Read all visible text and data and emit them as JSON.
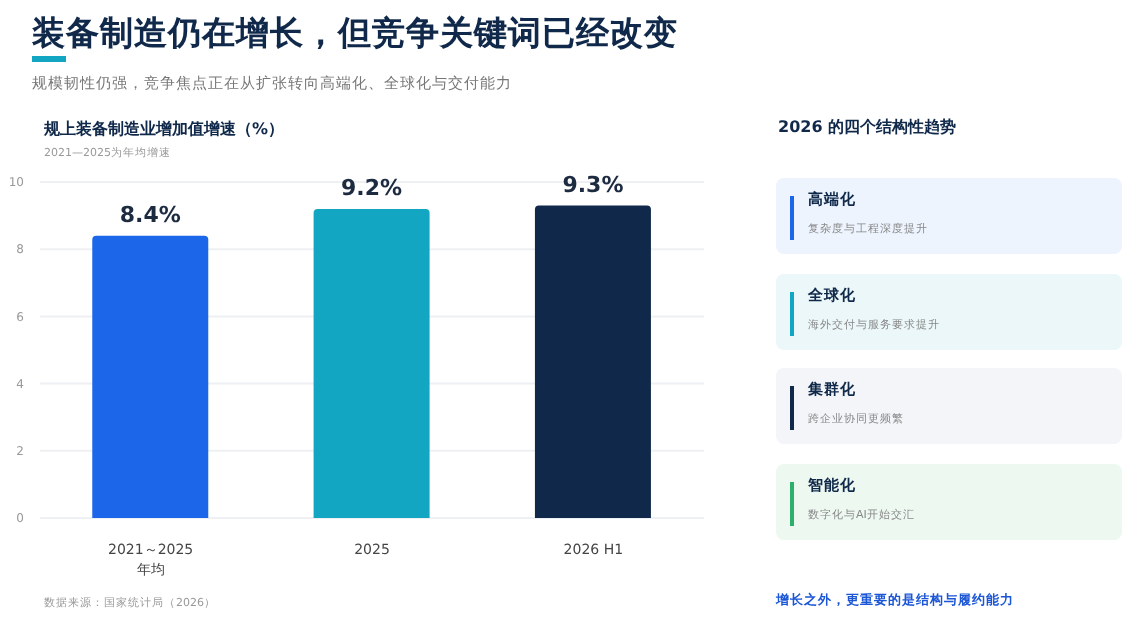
{
  "chart_data": {
    "type": "bar",
    "title": "装备制造仍在增长，但竞争关键词已经改变",
    "subtitle": "规模韧性仍强，竞争焦点正在从扩张转向高端化、全球化与交付能力",
    "annotations": [
      "规上装备制造业增加值增速（%）",
      "2021—2025为年均增速",
      "数据来源：国家统计局（2026）",
      "2026 的四个结构性趋势",
      "高端化",
      "复杂度与工程深度提升",
      "全球化",
      "海外交付与服务要求提升",
      "集群化",
      "跨企业协同更频繁",
      "智能化",
      "数字化与AI开始交汇",
      "增长之外，更重要的是结构与履约能力"
    ],
    "categories": [
      "2021～2025\n年均",
      "2025",
      "2026 H1"
    ],
    "values": [
      8.4,
      9.2,
      9.3
    ],
    "colors": [
      "#1b66e9",
      "#13a6c2",
      "#10294a"
    ],
    "value_labels": [
      "8.4%",
      "9.2%",
      "9.3%"
    ],
    "ylim": [
      0,
      10
    ],
    "yticks": [
      0,
      2,
      4,
      6,
      8,
      10
    ],
    "grid": "y"
  }
}
